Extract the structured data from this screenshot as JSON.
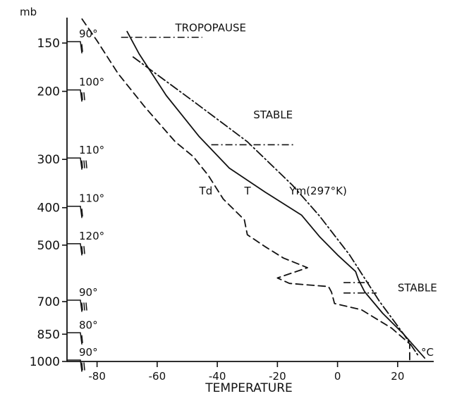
{
  "chart_data": {
    "type": "line",
    "title": "",
    "xlabel": "TEMPERATURE",
    "x_unit": "°C",
    "ylabel": "mb",
    "y_scale": "log",
    "xlim": [
      -90,
      32
    ],
    "ylim": [
      1000,
      130
    ],
    "x_ticks": [
      -80,
      -60,
      -40,
      -20,
      0,
      20
    ],
    "y_ticks": [
      150,
      200,
      300,
      400,
      500,
      700,
      850,
      1000
    ],
    "grid": false,
    "series": [
      {
        "name": "T",
        "style": "solid",
        "points": [
          [
            -70,
            140
          ],
          [
            -66,
            160
          ],
          [
            -57,
            205
          ],
          [
            -46,
            262
          ],
          [
            -36,
            316
          ],
          [
            -24,
            365
          ],
          [
            -12,
            418
          ],
          [
            -6,
            475
          ],
          [
            0,
            530
          ],
          [
            6,
            585
          ],
          [
            7,
            615
          ],
          [
            9,
            660
          ],
          [
            15,
            750
          ],
          [
            22,
            850
          ],
          [
            29,
            980
          ]
        ]
      },
      {
        "name": "Td",
        "style": "dashed",
        "points": [
          [
            -85,
            130
          ],
          [
            -80,
            148
          ],
          [
            -73,
            180
          ],
          [
            -64,
            220
          ],
          [
            -54,
            270
          ],
          [
            -48,
            295
          ],
          [
            -43,
            330
          ],
          [
            -38,
            380
          ],
          [
            -31,
            430
          ],
          [
            -30,
            470
          ],
          [
            -24,
            505
          ],
          [
            -18,
            540
          ],
          [
            -10,
            572
          ],
          [
            -20,
            608
          ],
          [
            -16,
            628
          ],
          [
            -3,
            640
          ],
          [
            -2,
            662
          ],
          [
            -1,
            708
          ],
          [
            8,
            735
          ],
          [
            18,
            820
          ],
          [
            24,
            900
          ],
          [
            24,
            990
          ]
        ]
      },
      {
        "name": "Ym(297°K)",
        "style": "dash-dot",
        "points": [
          [
            -68,
            163
          ],
          [
            -47,
            215
          ],
          [
            -30,
            270
          ],
          [
            -15,
            350
          ],
          [
            -6,
            420
          ],
          [
            4,
            530
          ],
          [
            14,
            700
          ],
          [
            22,
            850
          ],
          [
            27,
            970
          ]
        ]
      }
    ],
    "annotations": [
      {
        "text": "TROPOPAUSE",
        "x": -54,
        "p": 140
      },
      {
        "text": "STABLE",
        "x": -28,
        "p": 235
      },
      {
        "text": "T",
        "x": -31,
        "p": 370
      },
      {
        "text": "Td",
        "x": -46,
        "p": 370
      },
      {
        "text": "Ym(297°K)",
        "x": -16,
        "p": 370
      },
      {
        "text": "STABLE",
        "x": 20,
        "p": 658
      }
    ],
    "markers": [
      {
        "kind": "tropopause",
        "p": 145,
        "x_from": -72,
        "x_to": -45
      },
      {
        "kind": "stable-layer",
        "p": 275,
        "x_from": -42,
        "x_to": -14
      },
      {
        "kind": "stable-layer",
        "p": 625,
        "x_from": 2,
        "x_to": 11
      },
      {
        "kind": "stable-layer",
        "p": 665,
        "x_from": 2,
        "x_to": 13
      }
    ],
    "wind_barbs": [
      {
        "p": 150,
        "direction": "90°"
      },
      {
        "p": 200,
        "direction": "100°"
      },
      {
        "p": 300,
        "direction": "110°"
      },
      {
        "p": 400,
        "direction": "110°"
      },
      {
        "p": 500,
        "direction": "120°"
      },
      {
        "p": 700,
        "direction": "90°"
      },
      {
        "p": 850,
        "direction": "80°"
      },
      {
        "p": 1000,
        "direction": "90°"
      }
    ]
  }
}
